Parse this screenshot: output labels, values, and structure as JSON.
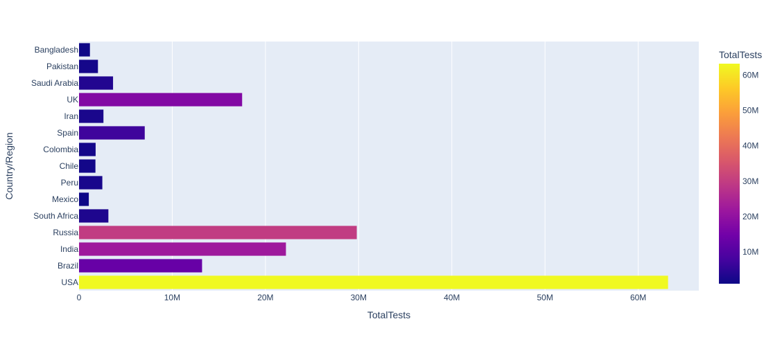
{
  "chart_data": {
    "type": "bar",
    "orientation": "horizontal",
    "title": "",
    "xlabel": "TotalTests",
    "ylabel": "Country/Region",
    "xlim": [
      0,
      66500000
    ],
    "categories": [
      "USA",
      "Brazil",
      "India",
      "Russia",
      "South Africa",
      "Mexico",
      "Peru",
      "Chile",
      "Colombia",
      "Spain",
      "Iran",
      "UK",
      "Saudi Arabia",
      "Pakistan",
      "Bangladesh"
    ],
    "values": [
      63200000,
      13200000,
      22200000,
      29800000,
      3150000,
      1050000,
      2500000,
      1760000,
      1780000,
      7050000,
      2620000,
      17500000,
      3650000,
      2030000,
      1170000
    ],
    "x_ticks": [
      {
        "value": 0,
        "label": "0"
      },
      {
        "value": 10000000,
        "label": "10M"
      },
      {
        "value": 20000000,
        "label": "20M"
      },
      {
        "value": 30000000,
        "label": "30M"
      },
      {
        "value": 40000000,
        "label": "40M"
      },
      {
        "value": 50000000,
        "label": "50M"
      },
      {
        "value": 60000000,
        "label": "60M"
      }
    ],
    "grid": true,
    "colorbar": {
      "title": "TotalTests",
      "range": [
        1050000,
        63200000
      ],
      "ticks": [
        {
          "value": 10000000,
          "label": "10M"
        },
        {
          "value": 20000000,
          "label": "20M"
        },
        {
          "value": 30000000,
          "label": "30M"
        },
        {
          "value": 40000000,
          "label": "40M"
        },
        {
          "value": 50000000,
          "label": "50M"
        },
        {
          "value": 60000000,
          "label": "60M"
        }
      ],
      "colorscale": [
        "#0d0887",
        "#46039f",
        "#7201a8",
        "#9c179e",
        "#bd3786",
        "#d8576b",
        "#ed7953",
        "#fb9f3a",
        "#fdca26",
        "#f0f921"
      ]
    },
    "colors": {
      "plot_bg": "#e5ecf6",
      "paper_bg": "#ffffff",
      "grid": "#ffffff",
      "text": "#2a3f5f"
    }
  }
}
